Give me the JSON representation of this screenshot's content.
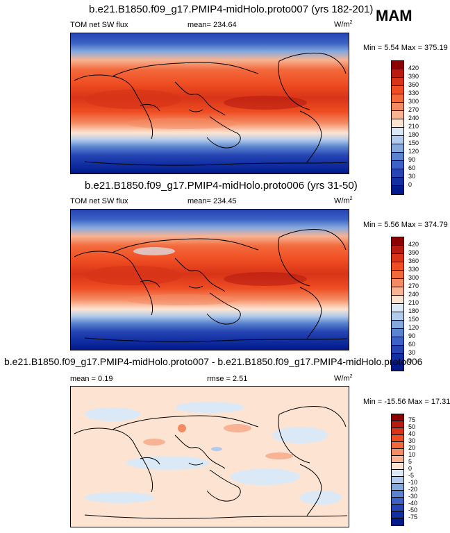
{
  "season": "MAM",
  "panels": [
    {
      "title": "b.e21.B1850.f09_g17.PMIP4-midHolo.proto007 (yrs 182-201)",
      "left_label": "TOM net SW flux",
      "stat1": "mean= 234.64",
      "stat2": "",
      "units": "W/m",
      "units_sup": "2",
      "minmax": "Min =   5.54 Max = 375.19",
      "colorbar": {
        "labels": [
          "420",
          "390",
          "360",
          "330",
          "300",
          "270",
          "240",
          "210",
          "180",
          "150",
          "120",
          "90",
          "60",
          "30",
          "0"
        ],
        "colors": [
          "#8b0000",
          "#b81c10",
          "#d83418",
          "#ef4d22",
          "#f26a3c",
          "#f48c63",
          "#f7b393",
          "#fde4d2",
          "#dbe9f6",
          "#b2cbea",
          "#86a9dd",
          "#5a84d0",
          "#3b62c4",
          "#2645b3",
          "#1330a3",
          "#001a8a"
        ]
      }
    },
    {
      "title": "b.e21.B1850.f09_g17.PMIP4-midHolo.proto006 (yrs 31-50)",
      "left_label": "TOM net SW flux",
      "stat1": "mean= 234.45",
      "stat2": "",
      "units": "W/m",
      "units_sup": "2",
      "minmax": "Min =   5.56 Max = 374.79",
      "colorbar": {
        "labels": [
          "420",
          "390",
          "360",
          "330",
          "300",
          "270",
          "240",
          "210",
          "180",
          "150",
          "120",
          "90",
          "60",
          "30",
          "0"
        ],
        "colors": [
          "#8b0000",
          "#b81c10",
          "#d83418",
          "#ef4d22",
          "#f26a3c",
          "#f48c63",
          "#f7b393",
          "#fde4d2",
          "#dbe9f6",
          "#b2cbea",
          "#86a9dd",
          "#5a84d0",
          "#3b62c4",
          "#2645b3",
          "#1330a3",
          "#001a8a"
        ]
      }
    },
    {
      "title": "b.e21.B1850.f09_g17.PMIP4-midHolo.proto007 - b.e21.B1850.f09_g17.PMIP4-midHolo.proto006",
      "left_label": "mean =   0.19",
      "stat1": "rmse =   2.51",
      "stat2": "",
      "units": "W/m",
      "units_sup": "2",
      "minmax": "Min = -15.56 Max =  17.31",
      "colorbar": {
        "labels": [
          "75",
          "50",
          "40",
          "30",
          "20",
          "10",
          "5",
          "0",
          "-5",
          "-10",
          "-20",
          "-30",
          "-40",
          "-50",
          "-75"
        ],
        "colors": [
          "#8b0000",
          "#b81c10",
          "#d83418",
          "#ef4d22",
          "#f26a3c",
          "#f48c63",
          "#f7b393",
          "#fde4d2",
          "#dbe9f6",
          "#b2cbea",
          "#86a9dd",
          "#5a84d0",
          "#3b62c4",
          "#2645b3",
          "#1330a3",
          "#001a8a"
        ]
      }
    }
  ]
}
